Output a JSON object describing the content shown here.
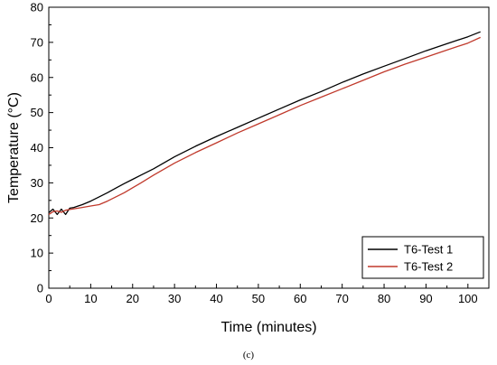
{
  "chart_data": {
    "type": "line",
    "xlabel": "Time (minutes)",
    "ylabel": "Temperature (°C)",
    "caption": "(c)",
    "xlim": [
      0,
      105
    ],
    "ylim": [
      0,
      80
    ],
    "xticks": [
      0,
      10,
      20,
      30,
      40,
      50,
      60,
      70,
      80,
      90,
      100
    ],
    "yticks": [
      0,
      10,
      20,
      30,
      40,
      50,
      60,
      70,
      80
    ],
    "grid": false,
    "legend_position": "bottom-right",
    "series": [
      {
        "name": "T6-Test 1",
        "color": "#000000",
        "x": [
          0,
          1,
          2,
          3,
          4,
          5,
          6,
          7,
          8,
          10,
          12,
          14,
          16,
          18,
          20,
          22,
          25,
          30,
          35,
          40,
          45,
          50,
          55,
          60,
          65,
          70,
          75,
          80,
          85,
          90,
          95,
          100,
          103
        ],
        "y": [
          21.5,
          22.5,
          21.0,
          22.5,
          21.0,
          22.8,
          23.0,
          23.4,
          23.8,
          24.8,
          26.0,
          27.2,
          28.5,
          29.8,
          31.0,
          32.2,
          34.0,
          37.4,
          40.4,
          43.2,
          45.8,
          48.4,
          51.0,
          53.6,
          56.0,
          58.6,
          61.0,
          63.2,
          65.4,
          67.6,
          69.6,
          71.6,
          73.0
        ]
      },
      {
        "name": "T6-Test 2",
        "color": "#c0392b",
        "x": [
          0,
          1,
          2,
          3,
          4,
          5,
          6,
          8,
          10,
          12,
          14,
          16,
          18,
          20,
          22,
          25,
          30,
          35,
          40,
          45,
          50,
          55,
          60,
          65,
          70,
          75,
          80,
          85,
          90,
          95,
          100,
          103
        ],
        "y": [
          21.0,
          21.8,
          22.0,
          21.6,
          22.2,
          22.4,
          22.6,
          23.0,
          23.4,
          23.8,
          24.8,
          26.0,
          27.2,
          28.6,
          30.0,
          32.2,
          35.6,
          38.6,
          41.4,
          44.2,
          46.8,
          49.4,
          52.0,
          54.4,
          56.8,
          59.2,
          61.6,
          63.8,
          65.8,
          67.8,
          69.8,
          71.4
        ]
      }
    ]
  }
}
